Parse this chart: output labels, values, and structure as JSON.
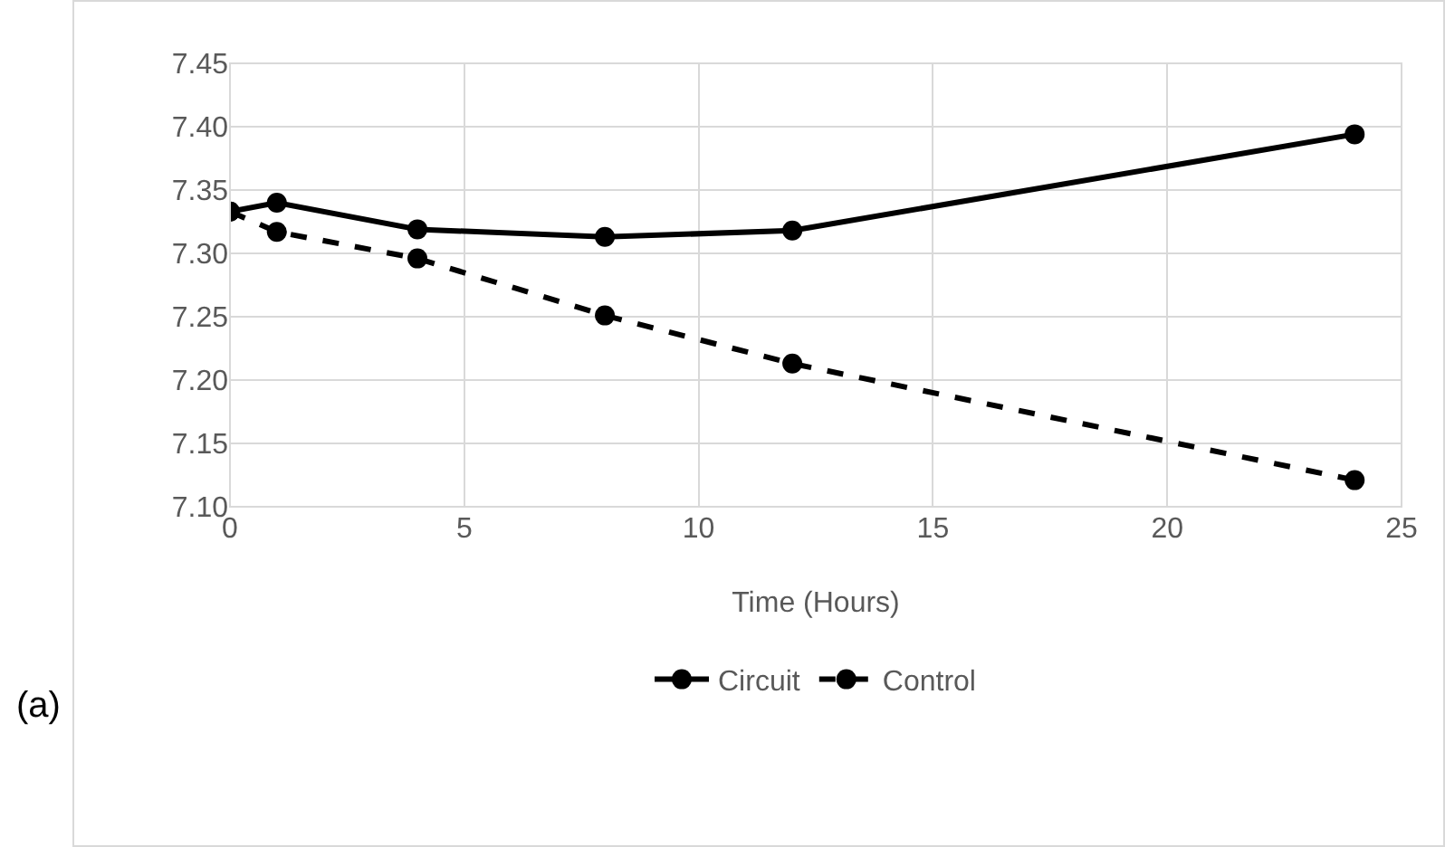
{
  "chart_data": {
    "type": "line",
    "xlabel": "Time (Hours)",
    "x": [
      0,
      1,
      4,
      8,
      12,
      24
    ],
    "series": [
      {
        "name": "Circuit",
        "color": "#000000",
        "values": [
          7.333,
          7.34,
          7.319,
          7.313,
          7.318,
          7.394
        ],
        "line_style": "solid"
      },
      {
        "name": "Control",
        "color": "#000000",
        "values": [
          7.333,
          7.317,
          7.296,
          7.251,
          7.213,
          7.121
        ],
        "line_style": "dashed"
      }
    ],
    "xlim": [
      0,
      25
    ],
    "xticks": [
      0,
      5,
      10,
      15,
      20,
      25
    ],
    "ylim": [
      7.1,
      7.45
    ],
    "yticks": [
      {
        "value": 7.1,
        "label": "7.10"
      },
      {
        "value": 7.15,
        "label": "7.15"
      },
      {
        "value": 7.2,
        "label": "7.20"
      },
      {
        "value": 7.25,
        "label": "7.25"
      },
      {
        "value": 7.3,
        "label": "7.30"
      },
      {
        "value": 7.35,
        "label": "7.35"
      },
      {
        "value": 7.4,
        "label": "7.40"
      },
      {
        "value": 7.45,
        "label": "7.45"
      }
    ],
    "grid": true,
    "legend": "bottom",
    "marker": "circle",
    "annotations": [
      "(a)"
    ]
  }
}
